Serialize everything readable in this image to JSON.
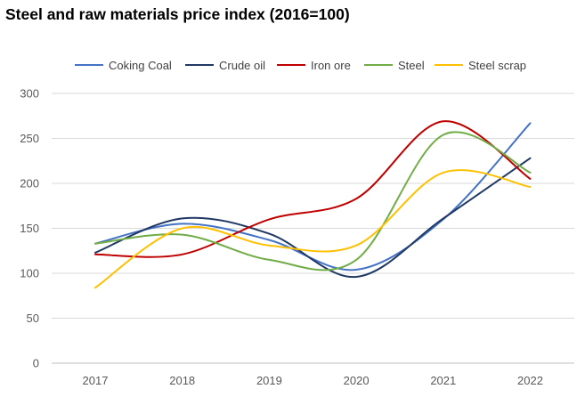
{
  "chart_data": {
    "type": "line",
    "title": "Steel and raw materials price index (2016=100)",
    "xlabel": "",
    "ylabel": "",
    "x": [
      "2017",
      "2018",
      "2019",
      "2020",
      "2021",
      "2022"
    ],
    "ylim": [
      0,
      300
    ],
    "yticks": [
      0,
      50,
      100,
      150,
      200,
      250,
      300
    ],
    "grid": true,
    "legend_position": "top",
    "series": [
      {
        "name": "Coking Coal",
        "color": "#4472C4",
        "values": [
          133,
          155,
          137,
          104,
          160,
          267
        ]
      },
      {
        "name": "Crude oil",
        "color": "#203864",
        "values": [
          123,
          161,
          144,
          96,
          161,
          228
        ]
      },
      {
        "name": "Iron ore",
        "color": "#C00000",
        "values": [
          121,
          121,
          160,
          183,
          269,
          205
        ]
      },
      {
        "name": "Steel",
        "color": "#70AD47",
        "values": [
          133,
          143,
          115,
          115,
          254,
          212
        ]
      },
      {
        "name": "Steel scrap",
        "color": "#FFC000",
        "values": [
          84,
          150,
          131,
          131,
          212,
          196
        ]
      }
    ]
  }
}
